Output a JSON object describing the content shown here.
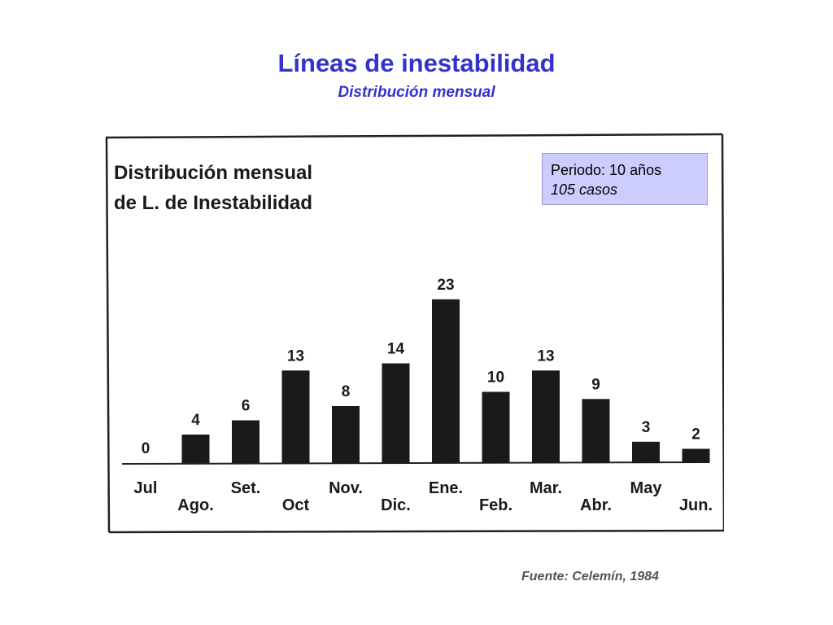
{
  "slide": {
    "title": "Líneas de inestabilidad",
    "subtitle": "Distribución mensual",
    "source": "Fuente: Celemín, 1984"
  },
  "info_box": {
    "period": "Periodo: 10 años",
    "cases": "105 casos",
    "background": "#ccccff"
  },
  "colors": {
    "title": "#3333cc",
    "bars": "#1a1a1a"
  },
  "chart_data": {
    "type": "bar",
    "title_lines": [
      "Distribución mensual",
      "de L. de Inestabilidad"
    ],
    "categories": [
      "Jul",
      "Ago.",
      "Set.",
      "Oct",
      "Nov.",
      "Dic.",
      "Ene.",
      "Feb.",
      "Mar.",
      "Abr.",
      "May",
      "Jun."
    ],
    "values": [
      0,
      4,
      6,
      13,
      8,
      14,
      23,
      10,
      13,
      9,
      3,
      2
    ],
    "xlabel": "",
    "ylabel": "",
    "ylim": [
      0,
      23
    ],
    "grid": false,
    "legend": "none"
  }
}
